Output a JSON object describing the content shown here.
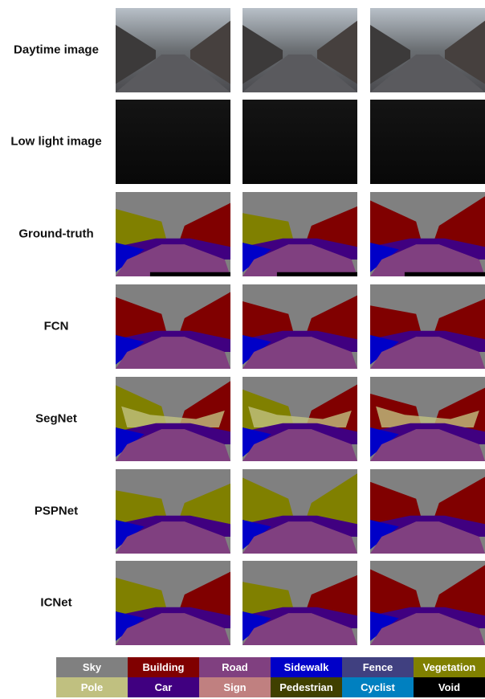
{
  "rows": [
    {
      "label": "Daytime image"
    },
    {
      "label": "Low light image"
    },
    {
      "label": "Ground-truth"
    },
    {
      "label": "FCN"
    },
    {
      "label": "SegNet"
    },
    {
      "label": "PSPNet"
    },
    {
      "label": "ICNet"
    }
  ],
  "legend": [
    {
      "label": "Sky",
      "color": "#808080"
    },
    {
      "label": "Building",
      "color": "#800000"
    },
    {
      "label": "Road",
      "color": "#804080"
    },
    {
      "label": "Sidewalk",
      "color": "#0000c8"
    },
    {
      "label": "Fence",
      "color": "#404080"
    },
    {
      "label": "Vegetation",
      "color": "#808000"
    },
    {
      "label": "Pole",
      "color": "#c0c080"
    },
    {
      "label": "Car",
      "color": "#400080"
    },
    {
      "label": "Sign",
      "color": "#c08080"
    },
    {
      "label": "Pedestrian",
      "color": "#404000"
    },
    {
      "label": "Cyclist",
      "color": "#0080c0"
    },
    {
      "label": "Void",
      "color": "#000000"
    }
  ]
}
